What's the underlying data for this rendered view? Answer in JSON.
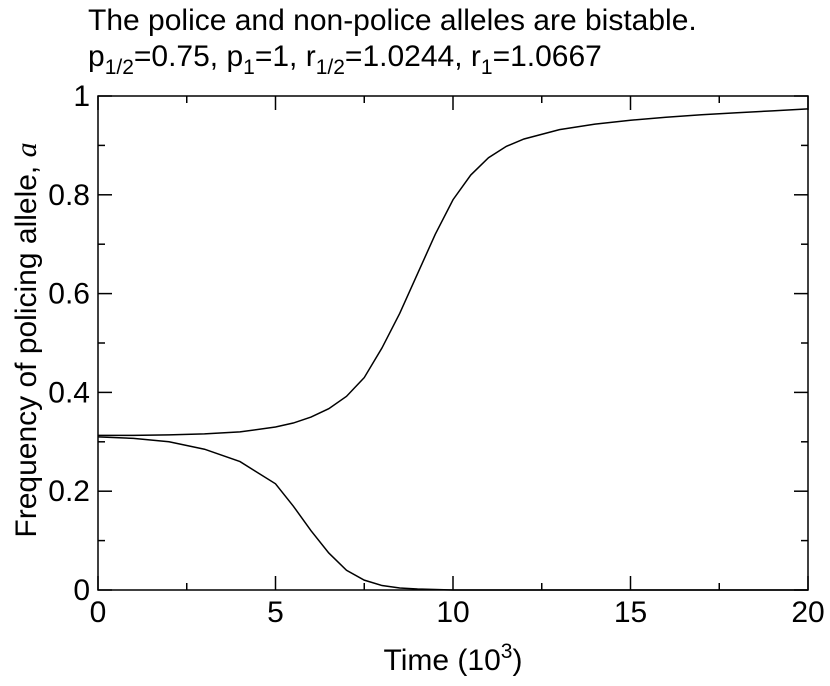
{
  "chart_data": {
    "type": "line",
    "title": "The police and non-police alleles are bistable.",
    "subtitle": [
      [
        "p",
        "1/2",
        "=0.75,  "
      ],
      [
        "p",
        "1",
        "=1,  "
      ],
      [
        "r",
        "1/2",
        "=1.0244,  "
      ],
      [
        "r",
        "1",
        "=1.0667"
      ]
    ],
    "xlabel": [
      "Time (10",
      "3",
      ")"
    ],
    "ylabel": [
      "Frequency of policing allele, ",
      "a"
    ],
    "x": [
      0,
      1,
      2,
      3,
      4,
      5,
      5.5,
      6,
      6.5,
      7,
      7.5,
      8,
      8.5,
      9,
      9.5,
      10,
      10.5,
      11,
      11.5,
      12,
      13,
      14,
      15,
      16,
      17,
      18,
      19,
      20
    ],
    "series": [
      {
        "color": "#000000",
        "values": [
          0.313,
          0.313,
          0.314,
          0.316,
          0.32,
          0.33,
          0.338,
          0.35,
          0.367,
          0.392,
          0.43,
          0.49,
          0.56,
          0.64,
          0.72,
          0.79,
          0.84,
          0.875,
          0.898,
          0.913,
          0.932,
          0.943,
          0.951,
          0.957,
          0.962,
          0.966,
          0.97,
          0.974
        ]
      },
      {
        "color": "#000000",
        "values": [
          0.31,
          0.307,
          0.3,
          0.285,
          0.26,
          0.215,
          0.17,
          0.12,
          0.075,
          0.04,
          0.02,
          0.009,
          0.004,
          0.002,
          0.001,
          0,
          0,
          0,
          0,
          0,
          0,
          0,
          0,
          0,
          0,
          0,
          0,
          0
        ]
      }
    ],
    "xlim": [
      0,
      20
    ],
    "xticks": [
      0,
      5,
      10,
      15,
      20
    ],
    "xminor": [
      2.5,
      7.5,
      12.5,
      17.5
    ],
    "ylim": [
      0,
      1
    ],
    "yticks": [
      0,
      0.2,
      0.4,
      0.6,
      0.8,
      1
    ],
    "yminor": [
      0.1,
      0.3,
      0.5,
      0.7,
      0.9
    ]
  }
}
